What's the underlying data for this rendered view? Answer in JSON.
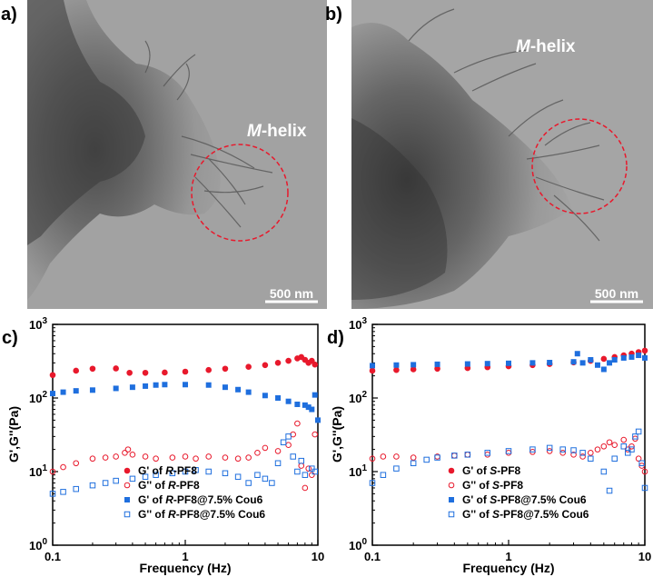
{
  "panels": {
    "a": {
      "label": "a)",
      "annotation_prefix": "M",
      "annotation_suffix": "-helix",
      "scale_bar": "500 nm"
    },
    "b": {
      "label": "b)",
      "annotation_prefix": "M",
      "annotation_suffix": "-helix",
      "scale_bar": "500 nm"
    }
  },
  "colors": {
    "red": "#e8192c",
    "blue": "#1f6fde",
    "circle": "#e8192c"
  },
  "chart_data": [
    {
      "panel_label": "c)",
      "type": "scatter",
      "xscale": "log",
      "yscale": "log",
      "xlim": [
        0.1,
        10
      ],
      "ylim": [
        1,
        1000
      ],
      "xlabel": "Frequency (Hz)",
      "ylabel": "G',G''(Pa)",
      "x_ticks": [
        "0.1",
        "1",
        "10"
      ],
      "y_ticks": [
        {
          "base": "10",
          "exp": "0"
        },
        {
          "base": "10",
          "exp": "1"
        },
        {
          "base": "10",
          "exp": "2"
        },
        {
          "base": "10",
          "exp": "3"
        }
      ],
      "legend_position": "bottom-left",
      "series": [
        {
          "name_prefix": "G' of ",
          "name_italic": "R",
          "name_suffix": "-PF8",
          "marker": "filled-circle",
          "color": "red",
          "points": [
            [
              0.1,
              205
            ],
            [
              0.15,
              235
            ],
            [
              0.2,
              250
            ],
            [
              0.3,
              252
            ],
            [
              0.38,
              220
            ],
            [
              0.5,
              220
            ],
            [
              0.7,
              222
            ],
            [
              1,
              228
            ],
            [
              1.5,
              240
            ],
            [
              2,
              250
            ],
            [
              3,
              265
            ],
            [
              4,
              280
            ],
            [
              5,
              300
            ],
            [
              6,
              320
            ],
            [
              7,
              345
            ],
            [
              7.5,
              360
            ],
            [
              8,
              330
            ],
            [
              8.5,
              300
            ],
            [
              9,
              320
            ],
            [
              9.5,
              285
            ]
          ]
        },
        {
          "name_prefix": "G'' of ",
          "name_italic": "R",
          "name_suffix": "-PF8",
          "marker": "open-circle",
          "color": "red",
          "points": [
            [
              0.1,
              10
            ],
            [
              0.12,
              11.5
            ],
            [
              0.15,
              13
            ],
            [
              0.2,
              15
            ],
            [
              0.25,
              15.5
            ],
            [
              0.3,
              16
            ],
            [
              0.35,
              18
            ],
            [
              0.37,
              20
            ],
            [
              0.4,
              17
            ],
            [
              0.5,
              16
            ],
            [
              0.6,
              15
            ],
            [
              0.8,
              15.5
            ],
            [
              1,
              16
            ],
            [
              1.2,
              15
            ],
            [
              1.5,
              16
            ],
            [
              2,
              15.5
            ],
            [
              2.5,
              15
            ],
            [
              3,
              15.5
            ],
            [
              3.5,
              18
            ],
            [
              4,
              21
            ],
            [
              5,
              19
            ],
            [
              6,
              23
            ],
            [
              6.5,
              32
            ],
            [
              7,
              45
            ],
            [
              7.5,
              12
            ],
            [
              8,
              6
            ],
            [
              8.5,
              11
            ],
            [
              9,
              9
            ],
            [
              9.5,
              32
            ]
          ]
        },
        {
          "name_prefix": "G' of ",
          "name_italic": "R",
          "name_suffix": "-PF8@7.5% Cou6",
          "marker": "filled-square",
          "color": "blue",
          "points": [
            [
              0.1,
              115
            ],
            [
              0.12,
              120
            ],
            [
              0.15,
              125
            ],
            [
              0.2,
              128
            ],
            [
              0.3,
              135
            ],
            [
              0.4,
              140
            ],
            [
              0.5,
              145
            ],
            [
              0.6,
              150
            ],
            [
              0.7,
              152
            ],
            [
              1,
              152
            ],
            [
              1.5,
              150
            ],
            [
              2,
              140
            ],
            [
              2.5,
              130
            ],
            [
              3,
              120
            ],
            [
              4,
              108
            ],
            [
              5,
              100
            ],
            [
              6,
              90
            ],
            [
              7,
              82
            ],
            [
              8,
              80
            ],
            [
              8.5,
              75
            ],
            [
              9,
              70
            ],
            [
              9.5,
              110
            ],
            [
              10,
              50
            ]
          ]
        },
        {
          "name_prefix": "G'' of ",
          "name_italic": "R",
          "name_suffix": "-PF8@7.5% Cou6",
          "marker": "open-square",
          "color": "blue",
          "points": [
            [
              0.1,
              5
            ],
            [
              0.12,
              5.3
            ],
            [
              0.15,
              5.8
            ],
            [
              0.2,
              6.5
            ],
            [
              0.25,
              7
            ],
            [
              0.3,
              7.5
            ],
            [
              0.4,
              8
            ],
            [
              0.5,
              8.5
            ],
            [
              0.6,
              9
            ],
            [
              0.8,
              9.5
            ],
            [
              1,
              10
            ],
            [
              1.2,
              10.5
            ],
            [
              1.5,
              10
            ],
            [
              2,
              9.5
            ],
            [
              2.5,
              8.5
            ],
            [
              3,
              7
            ],
            [
              3.5,
              9
            ],
            [
              4,
              8
            ],
            [
              4.5,
              7
            ],
            [
              5,
              13
            ],
            [
              5.5,
              25
            ],
            [
              6,
              30
            ],
            [
              6.5,
              16
            ],
            [
              7,
              10
            ],
            [
              7.5,
              14
            ],
            [
              8,
              9
            ],
            [
              9,
              11
            ],
            [
              9.5,
              10
            ]
          ]
        }
      ]
    },
    {
      "panel_label": "d)",
      "type": "scatter",
      "xscale": "log",
      "yscale": "log",
      "xlim": [
        0.1,
        10
      ],
      "ylim": [
        1,
        1000
      ],
      "xlabel": "Frequency (Hz)",
      "ylabel": "G',G''(Pa)",
      "x_ticks": [
        "0.1",
        "1",
        "10"
      ],
      "y_ticks": [
        {
          "base": "10",
          "exp": "0"
        },
        {
          "base": "10",
          "exp": "1"
        },
        {
          "base": "10",
          "exp": "2"
        },
        {
          "base": "10",
          "exp": "3"
        }
      ],
      "legend_position": "bottom-right",
      "series": [
        {
          "name_prefix": "G' of ",
          "name_italic": "S",
          "name_suffix": "-PF8",
          "marker": "filled-circle",
          "color": "red",
          "points": [
            [
              0.1,
              235
            ],
            [
              0.15,
              240
            ],
            [
              0.2,
              245
            ],
            [
              0.3,
              250
            ],
            [
              0.5,
              255
            ],
            [
              0.7,
              262
            ],
            [
              1,
              270
            ],
            [
              1.5,
              280
            ],
            [
              2,
              290
            ],
            [
              3,
              305
            ],
            [
              4,
              320
            ],
            [
              5,
              340
            ],
            [
              6,
              360
            ],
            [
              7,
              380
            ],
            [
              8,
              400
            ],
            [
              9,
              420
            ],
            [
              10,
              440
            ]
          ]
        },
        {
          "name_prefix": "G'' of ",
          "name_italic": "S",
          "name_suffix": "-PF8",
          "marker": "open-circle",
          "color": "red",
          "points": [
            [
              0.1,
              15
            ],
            [
              0.12,
              16
            ],
            [
              0.15,
              16
            ],
            [
              0.2,
              15.5
            ],
            [
              0.3,
              16
            ],
            [
              0.4,
              16.5
            ],
            [
              0.5,
              17
            ],
            [
              0.7,
              17
            ],
            [
              1,
              18
            ],
            [
              1.5,
              18.5
            ],
            [
              2,
              19
            ],
            [
              2.5,
              18
            ],
            [
              3,
              17
            ],
            [
              3.5,
              16
            ],
            [
              4,
              18
            ],
            [
              4.5,
              20
            ],
            [
              5,
              22
            ],
            [
              5.5,
              25
            ],
            [
              6,
              23
            ],
            [
              7,
              27
            ],
            [
              7.5,
              20
            ],
            [
              8,
              22
            ],
            [
              8.5,
              28
            ],
            [
              9,
              15
            ],
            [
              9.5,
              12
            ],
            [
              10,
              10
            ]
          ]
        },
        {
          "name_prefix": "G' of ",
          "name_italic": "S",
          "name_suffix": "-PF8@7.5% Cou6",
          "marker": "filled-square",
          "color": "blue",
          "points": [
            [
              0.1,
              275
            ],
            [
              0.15,
              280
            ],
            [
              0.2,
              283
            ],
            [
              0.3,
              287
            ],
            [
              0.5,
              290
            ],
            [
              0.7,
              293
            ],
            [
              1,
              296
            ],
            [
              1.5,
              300
            ],
            [
              2,
              303
            ],
            [
              3,
              310
            ],
            [
              3.2,
              400
            ],
            [
              3.5,
              300
            ],
            [
              4,
              330
            ],
            [
              4.5,
              280
            ],
            [
              5,
              245
            ],
            [
              5.5,
              300
            ],
            [
              6,
              330
            ],
            [
              7,
              350
            ],
            [
              8,
              360
            ],
            [
              9,
              380
            ],
            [
              10,
              350
            ]
          ]
        },
        {
          "name_prefix": "G'' of ",
          "name_italic": "S",
          "name_suffix": "-PF8@7.5% Cou6",
          "marker": "open-square",
          "color": "blue",
          "points": [
            [
              0.1,
              7
            ],
            [
              0.12,
              9
            ],
            [
              0.15,
              11
            ],
            [
              0.2,
              13
            ],
            [
              0.25,
              14.5
            ],
            [
              0.3,
              15.5
            ],
            [
              0.4,
              16.5
            ],
            [
              0.5,
              17
            ],
            [
              0.7,
              18
            ],
            [
              1,
              19
            ],
            [
              1.5,
              20
            ],
            [
              2,
              21
            ],
            [
              2.5,
              20
            ],
            [
              3,
              19.5
            ],
            [
              3.5,
              18
            ],
            [
              4,
              15
            ],
            [
              5,
              10
            ],
            [
              5.5,
              5.5
            ],
            [
              6,
              15
            ],
            [
              7,
              22
            ],
            [
              7.5,
              18
            ],
            [
              8,
              20
            ],
            [
              8.5,
              30
            ],
            [
              9,
              35
            ],
            [
              9.5,
              13
            ],
            [
              10,
              6
            ]
          ]
        }
      ]
    }
  ]
}
